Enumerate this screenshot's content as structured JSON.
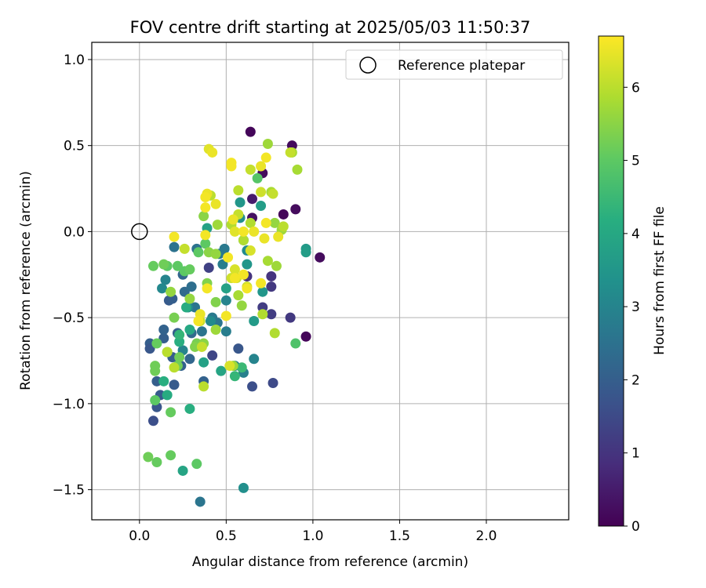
{
  "chart_data": {
    "type": "scatter",
    "title": "FOV centre drift starting at 2025/05/03 11:50:37",
    "xlabel": "Angular distance from reference (arcmin)",
    "ylabel": "Rotation from reference (arcmin)",
    "xlim": [
      -0.275,
      2.475
    ],
    "ylim": [
      -1.675,
      1.1
    ],
    "xticks": [
      0.0,
      0.5,
      1.0,
      1.5,
      2.0
    ],
    "xtick_labels": [
      "0.0",
      "0.5",
      "1.0",
      "1.5",
      "2.0"
    ],
    "yticks": [
      1.0,
      0.5,
      0.0,
      -0.5,
      -1.0,
      -1.5
    ],
    "ytick_labels": [
      "1.0",
      "0.5",
      "0.0",
      "−0.5",
      "−1.0",
      "−1.5"
    ],
    "grid": true,
    "legend": {
      "position": "top-right",
      "entries": [
        "Reference platepar"
      ]
    },
    "reference_point": {
      "x": 0.0,
      "y": 0.0
    },
    "colorbar": {
      "label": "Hours from first FF file",
      "range": [
        0,
        6.7
      ],
      "ticks": [
        0,
        1,
        2,
        3,
        4,
        5,
        6
      ],
      "tick_labels": [
        "0",
        "1",
        "2",
        "3",
        "4",
        "5",
        "6"
      ],
      "colormap": "viridis"
    },
    "points": [
      {
        "x": 0.64,
        "y": 0.58,
        "h": 0.1
      },
      {
        "x": 0.88,
        "y": 0.5,
        "h": 0.2
      },
      {
        "x": 0.71,
        "y": 0.34,
        "h": 0.2
      },
      {
        "x": 0.9,
        "y": 0.13,
        "h": 0.2
      },
      {
        "x": 0.83,
        "y": 0.1,
        "h": 0.1
      },
      {
        "x": 1.04,
        "y": -0.15,
        "h": 0.2
      },
      {
        "x": 0.96,
        "y": -0.61,
        "h": 0.1
      },
      {
        "x": 0.65,
        "y": 0.08,
        "h": 0.3
      },
      {
        "x": 0.65,
        "y": 0.19,
        "h": 0.5
      },
      {
        "x": 0.62,
        "y": -0.26,
        "h": 0.8
      },
      {
        "x": 0.76,
        "y": -0.26,
        "h": 1.0
      },
      {
        "x": 0.76,
        "y": -0.32,
        "h": 1.1
      },
      {
        "x": 0.76,
        "y": -0.48,
        "h": 1.2
      },
      {
        "x": 0.87,
        "y": -0.5,
        "h": 1.1
      },
      {
        "x": 0.77,
        "y": -0.88,
        "h": 1.5
      },
      {
        "x": 0.65,
        "y": -0.9,
        "h": 1.6
      },
      {
        "x": 0.57,
        "y": -0.68,
        "h": 1.8
      },
      {
        "x": 0.62,
        "y": -0.26,
        "h": 1.0
      },
      {
        "x": 0.71,
        "y": -0.44,
        "h": 1.2
      },
      {
        "x": 0.42,
        "y": -0.72,
        "h": 1.4
      },
      {
        "x": 0.4,
        "y": -0.21,
        "h": 1.3
      },
      {
        "x": 0.06,
        "y": -0.65,
        "h": 2.0
      },
      {
        "x": 0.06,
        "y": -0.68,
        "h": 1.8
      },
      {
        "x": 0.08,
        "y": -1.1,
        "h": 1.6
      },
      {
        "x": 0.1,
        "y": -1.02,
        "h": 1.8
      },
      {
        "x": 0.12,
        "y": -0.95,
        "h": 1.9
      },
      {
        "x": 0.1,
        "y": -0.87,
        "h": 2.0
      },
      {
        "x": 0.14,
        "y": -0.62,
        "h": 2.0
      },
      {
        "x": 0.14,
        "y": -0.57,
        "h": 2.1
      },
      {
        "x": 0.17,
        "y": -0.4,
        "h": 1.9
      },
      {
        "x": 0.19,
        "y": -0.39,
        "h": 2.0
      },
      {
        "x": 0.2,
        "y": -0.89,
        "h": 1.9
      },
      {
        "x": 0.19,
        "y": -0.73,
        "h": 2.0
      },
      {
        "x": 0.22,
        "y": -0.59,
        "h": 2.0
      },
      {
        "x": 0.25,
        "y": -0.25,
        "h": 2.2
      },
      {
        "x": 0.24,
        "y": -0.78,
        "h": 2.1
      },
      {
        "x": 0.29,
        "y": -0.74,
        "h": 2.2
      },
      {
        "x": 0.3,
        "y": -0.59,
        "h": 2.3
      },
      {
        "x": 0.26,
        "y": -0.35,
        "h": 2.3
      },
      {
        "x": 0.3,
        "y": -0.32,
        "h": 2.4
      },
      {
        "x": 0.2,
        "y": -0.09,
        "h": 2.5
      },
      {
        "x": 0.33,
        "y": -0.1,
        "h": 2.5
      },
      {
        "x": 0.37,
        "y": -0.87,
        "h": 2.1
      },
      {
        "x": 0.35,
        "y": -1.57,
        "h": 2.6
      },
      {
        "x": 0.32,
        "y": -0.44,
        "h": 2.6
      },
      {
        "x": 0.36,
        "y": -0.58,
        "h": 2.6
      },
      {
        "x": 0.42,
        "y": -0.5,
        "h": 2.7
      },
      {
        "x": 0.45,
        "y": -0.53,
        "h": 2.6
      },
      {
        "x": 0.5,
        "y": -0.58,
        "h": 2.8
      },
      {
        "x": 0.46,
        "y": -0.13,
        "h": 2.7
      },
      {
        "x": 0.49,
        "y": -0.1,
        "h": 2.7
      },
      {
        "x": 0.48,
        "y": -0.19,
        "h": 2.8
      },
      {
        "x": 0.55,
        "y": -0.78,
        "h": 2.9
      },
      {
        "x": 0.6,
        "y": -0.82,
        "h": 2.9
      },
      {
        "x": 0.66,
        "y": -0.74,
        "h": 3.0
      },
      {
        "x": 0.5,
        "y": -0.4,
        "h": 3.0
      },
      {
        "x": 0.25,
        "y": -0.69,
        "h": 3.0
      },
      {
        "x": 0.28,
        "y": -0.44,
        "h": 3.1
      },
      {
        "x": 0.15,
        "y": -0.28,
        "h": 3.0
      },
      {
        "x": 0.13,
        "y": -0.33,
        "h": 3.1
      },
      {
        "x": 0.41,
        "y": -0.52,
        "h": 3.2
      },
      {
        "x": 0.6,
        "y": -1.49,
        "h": 3.3
      },
      {
        "x": 0.62,
        "y": -0.11,
        "h": 3.2
      },
      {
        "x": 0.58,
        "y": 0.08,
        "h": 3.3
      },
      {
        "x": 0.6,
        "y": -0.05,
        "h": 3.4
      },
      {
        "x": 0.62,
        "y": -0.19,
        "h": 3.5
      },
      {
        "x": 0.58,
        "y": 0.17,
        "h": 3.5
      },
      {
        "x": 0.71,
        "y": -0.35,
        "h": 3.5
      },
      {
        "x": 0.66,
        "y": -0.52,
        "h": 3.6
      },
      {
        "x": 0.96,
        "y": -0.1,
        "h": 3.6
      },
      {
        "x": 0.96,
        "y": -0.12,
        "h": 3.7
      },
      {
        "x": 0.7,
        "y": 0.15,
        "h": 3.7
      },
      {
        "x": 0.5,
        "y": -0.33,
        "h": 3.8
      },
      {
        "x": 0.37,
        "y": -0.76,
        "h": 3.8
      },
      {
        "x": 0.47,
        "y": -0.81,
        "h": 3.9
      },
      {
        "x": 0.39,
        "y": 0.02,
        "h": 3.8
      },
      {
        "x": 0.29,
        "y": -0.57,
        "h": 4.0
      },
      {
        "x": 0.27,
        "y": -0.44,
        "h": 4.1
      },
      {
        "x": 0.23,
        "y": -0.64,
        "h": 4.2
      },
      {
        "x": 0.14,
        "y": -0.87,
        "h": 4.2
      },
      {
        "x": 0.16,
        "y": -0.95,
        "h": 4.1
      },
      {
        "x": 0.29,
        "y": -1.03,
        "h": 4.2
      },
      {
        "x": 0.25,
        "y": -1.39,
        "h": 3.9
      },
      {
        "x": 0.23,
        "y": -0.6,
        "h": 4.4
      },
      {
        "x": 0.55,
        "y": -0.84,
        "h": 4.4
      },
      {
        "x": 0.59,
        "y": -0.79,
        "h": 4.5
      },
      {
        "x": 0.9,
        "y": -0.65,
        "h": 4.8
      },
      {
        "x": 0.68,
        "y": 0.31,
        "h": 4.9
      },
      {
        "x": 0.38,
        "y": -0.07,
        "h": 5.0
      },
      {
        "x": 0.34,
        "y": -0.12,
        "h": 5.0
      },
      {
        "x": 0.22,
        "y": -0.2,
        "h": 5.0
      },
      {
        "x": 0.26,
        "y": -0.23,
        "h": 5.0
      },
      {
        "x": 0.29,
        "y": -0.22,
        "h": 5.1
      },
      {
        "x": 0.16,
        "y": -0.2,
        "h": 5.0
      },
      {
        "x": 0.08,
        "y": -0.2,
        "h": 5.1
      },
      {
        "x": 0.14,
        "y": -0.19,
        "h": 5.2
      },
      {
        "x": 0.16,
        "y": -0.7,
        "h": 5.1
      },
      {
        "x": 0.1,
        "y": -0.65,
        "h": 5.1
      },
      {
        "x": 0.09,
        "y": -0.78,
        "h": 5.2
      },
      {
        "x": 0.09,
        "y": -0.81,
        "h": 5.2
      },
      {
        "x": 0.09,
        "y": -0.98,
        "h": 5.0
      },
      {
        "x": 0.18,
        "y": -1.05,
        "h": 5.1
      },
      {
        "x": 0.05,
        "y": -1.31,
        "h": 5.2
      },
      {
        "x": 0.1,
        "y": -1.34,
        "h": 5.1
      },
      {
        "x": 0.18,
        "y": -1.3,
        "h": 5.1
      },
      {
        "x": 0.33,
        "y": -1.35,
        "h": 5.0
      },
      {
        "x": 0.22,
        "y": -0.78,
        "h": 5.2
      },
      {
        "x": 0.23,
        "y": -0.73,
        "h": 5.2
      },
      {
        "x": 0.2,
        "y": -0.5,
        "h": 5.3
      },
      {
        "x": 0.33,
        "y": -0.65,
        "h": 5.3
      },
      {
        "x": 0.32,
        "y": -0.67,
        "h": 5.4
      },
      {
        "x": 0.37,
        "y": -0.65,
        "h": 5.5
      },
      {
        "x": 0.44,
        "y": -0.41,
        "h": 5.4
      },
      {
        "x": 0.39,
        "y": -0.3,
        "h": 5.4
      },
      {
        "x": 0.4,
        "y": -0.12,
        "h": 5.5
      },
      {
        "x": 0.44,
        "y": -0.13,
        "h": 5.6
      },
      {
        "x": 0.45,
        "y": 0.04,
        "h": 5.7
      },
      {
        "x": 0.37,
        "y": 0.09,
        "h": 5.5
      },
      {
        "x": 0.18,
        "y": -0.35,
        "h": 5.6
      },
      {
        "x": 0.29,
        "y": -0.39,
        "h": 5.6
      },
      {
        "x": 0.44,
        "y": -0.57,
        "h": 5.7
      },
      {
        "x": 0.54,
        "y": -0.78,
        "h": 5.7
      },
      {
        "x": 0.57,
        "y": -0.37,
        "h": 5.8
      },
      {
        "x": 0.59,
        "y": -0.43,
        "h": 5.6
      },
      {
        "x": 0.74,
        "y": -0.17,
        "h": 5.8
      },
      {
        "x": 0.79,
        "y": -0.2,
        "h": 5.7
      },
      {
        "x": 0.78,
        "y": 0.05,
        "h": 5.6
      },
      {
        "x": 0.82,
        "y": 0.01,
        "h": 5.7
      },
      {
        "x": 0.76,
        "y": 0.23,
        "h": 5.8
      },
      {
        "x": 0.74,
        "y": 0.51,
        "h": 5.7
      },
      {
        "x": 0.88,
        "y": 0.46,
        "h": 5.8
      },
      {
        "x": 0.91,
        "y": 0.36,
        "h": 5.8
      },
      {
        "x": 0.64,
        "y": 0.05,
        "h": 5.9
      },
      {
        "x": 0.53,
        "y": 0.04,
        "h": 5.9
      },
      {
        "x": 0.57,
        "y": 0.24,
        "h": 6.0
      },
      {
        "x": 0.6,
        "y": -0.05,
        "h": 5.9
      },
      {
        "x": 0.71,
        "y": -0.48,
        "h": 5.9
      },
      {
        "x": 0.78,
        "y": -0.59,
        "h": 5.9
      },
      {
        "x": 0.37,
        "y": -0.9,
        "h": 6.0
      },
      {
        "x": 0.2,
        "y": -0.79,
        "h": 6.0
      },
      {
        "x": 0.16,
        "y": -0.7,
        "h": 6.0
      },
      {
        "x": 0.36,
        "y": -0.67,
        "h": 6.1
      },
      {
        "x": 0.35,
        "y": -0.52,
        "h": 6.1
      },
      {
        "x": 0.26,
        "y": -0.1,
        "h": 6.1
      },
      {
        "x": 0.41,
        "y": 0.21,
        "h": 6.0
      },
      {
        "x": 0.57,
        "y": 0.1,
        "h": 6.1
      },
      {
        "x": 0.64,
        "y": 0.36,
        "h": 6.1
      },
      {
        "x": 0.77,
        "y": 0.22,
        "h": 6.1
      },
      {
        "x": 0.7,
        "y": 0.23,
        "h": 6.2
      },
      {
        "x": 0.83,
        "y": 0.03,
        "h": 6.0
      },
      {
        "x": 0.87,
        "y": 0.46,
        "h": 6.1
      },
      {
        "x": 0.56,
        "y": -0.27,
        "h": 6.2
      },
      {
        "x": 0.53,
        "y": -0.27,
        "h": 6.2
      },
      {
        "x": 0.62,
        "y": -0.32,
        "h": 6.2
      },
      {
        "x": 0.55,
        "y": -0.22,
        "h": 6.3
      },
      {
        "x": 0.64,
        "y": -0.11,
        "h": 6.3
      },
      {
        "x": 0.52,
        "y": -0.78,
        "h": 6.3
      },
      {
        "x": 0.4,
        "y": 0.48,
        "h": 6.4
      },
      {
        "x": 0.42,
        "y": 0.46,
        "h": 6.5
      },
      {
        "x": 0.53,
        "y": 0.4,
        "h": 6.6
      },
      {
        "x": 0.53,
        "y": 0.38,
        "h": 6.6
      },
      {
        "x": 0.7,
        "y": 0.38,
        "h": 6.5
      },
      {
        "x": 0.73,
        "y": 0.43,
        "h": 6.6
      },
      {
        "x": 0.39,
        "y": 0.22,
        "h": 6.5
      },
      {
        "x": 0.38,
        "y": 0.2,
        "h": 6.6
      },
      {
        "x": 0.44,
        "y": 0.16,
        "h": 6.5
      },
      {
        "x": 0.38,
        "y": 0.14,
        "h": 6.6
      },
      {
        "x": 0.54,
        "y": 0.07,
        "h": 6.5
      },
      {
        "x": 0.55,
        "y": 0.0,
        "h": 6.4
      },
      {
        "x": 0.66,
        "y": 0.0,
        "h": 6.5
      },
      {
        "x": 0.72,
        "y": -0.04,
        "h": 6.5
      },
      {
        "x": 0.73,
        "y": 0.05,
        "h": 6.6
      },
      {
        "x": 0.8,
        "y": -0.03,
        "h": 6.5
      },
      {
        "x": 0.38,
        "y": -0.02,
        "h": 6.6
      },
      {
        "x": 0.2,
        "y": -0.03,
        "h": 6.6
      },
      {
        "x": 0.39,
        "y": -0.33,
        "h": 6.6
      },
      {
        "x": 0.51,
        "y": -0.15,
        "h": 6.6
      },
      {
        "x": 0.55,
        "y": -0.27,
        "h": 6.6
      },
      {
        "x": 0.6,
        "y": -0.25,
        "h": 6.6
      },
      {
        "x": 0.62,
        "y": -0.33,
        "h": 6.6
      },
      {
        "x": 0.7,
        "y": -0.3,
        "h": 6.6
      },
      {
        "x": 0.35,
        "y": -0.48,
        "h": 6.5
      },
      {
        "x": 0.34,
        "y": -0.52,
        "h": 6.6
      },
      {
        "x": 0.5,
        "y": -0.49,
        "h": 6.6
      },
      {
        "x": 0.6,
        "y": 0.0,
        "h": 6.6
      }
    ]
  }
}
